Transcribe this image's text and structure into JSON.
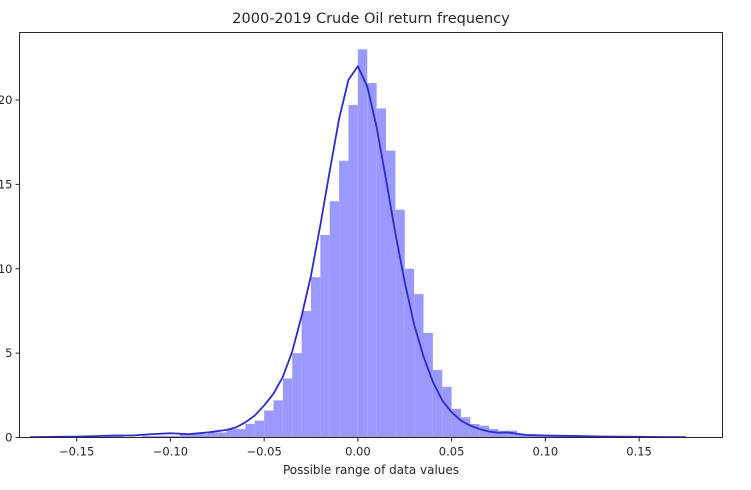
{
  "chart_data": {
    "type": "histogram",
    "title": "2000-2019 Crude Oil return frequency",
    "xlabel": "Possible range of data values",
    "ylabel": "",
    "xlim": [
      -0.1805,
      0.1945
    ],
    "ylim": [
      0,
      24
    ],
    "xticks": [
      -0.15,
      -0.1,
      -0.05,
      0.0,
      0.05,
      0.1,
      0.15
    ],
    "xtick_labels": [
      "−0.15",
      "−0.10",
      "−0.05",
      "0.00",
      "0.05",
      "0.10",
      "0.15"
    ],
    "yticks": [
      0,
      5,
      10,
      15,
      20
    ],
    "ytick_labels": [
      "0",
      "5",
      "10",
      "15",
      "20"
    ],
    "grid": false,
    "bar_color": "#9999ff",
    "kde_color": "#2b2bcf",
    "bin_edges": [
      -0.175,
      -0.17,
      -0.165,
      -0.16,
      -0.155,
      -0.15,
      -0.145,
      -0.14,
      -0.135,
      -0.13,
      -0.125,
      -0.12,
      -0.115,
      -0.11,
      -0.105,
      -0.1,
      -0.095,
      -0.09,
      -0.085,
      -0.08,
      -0.075,
      -0.07,
      -0.065,
      -0.06,
      -0.055,
      -0.05,
      -0.045,
      -0.04,
      -0.035,
      -0.03,
      -0.025,
      -0.02,
      -0.015,
      -0.01,
      -0.005,
      0.0,
      0.005,
      0.01,
      0.015,
      0.02,
      0.025,
      0.03,
      0.035,
      0.04,
      0.045,
      0.05,
      0.055,
      0.06,
      0.065,
      0.07,
      0.075,
      0.08,
      0.085,
      0.09,
      0.095,
      0.1,
      0.105,
      0.11,
      0.115,
      0.12,
      0.125,
      0.13,
      0.135,
      0.14,
      0.145,
      0.15,
      0.155,
      0.16,
      0.165,
      0.17,
      0.175
    ],
    "counts": [
      0,
      0,
      0,
      0,
      0,
      0,
      0,
      0,
      0.1,
      0.1,
      0,
      0,
      0.1,
      0.1,
      0.1,
      0.1,
      0.2,
      0.2,
      0.2,
      0.3,
      0.3,
      0.5,
      0.5,
      0.8,
      1.0,
      1.6,
      2.2,
      3.5,
      5.0,
      7.5,
      9.5,
      12.0,
      14.0,
      16.4,
      19.7,
      23.0,
      21.0,
      19.5,
      17.0,
      13.5,
      10.0,
      8.5,
      6.2,
      4.0,
      3.0,
      1.7,
      1.2,
      0.8,
      0.7,
      0.5,
      0.4,
      0.4,
      0.2,
      0.2,
      0.1,
      0.1,
      0.1,
      0.1,
      0.1,
      0,
      0,
      0,
      0,
      0,
      0,
      0,
      0,
      0,
      0,
      0
    ],
    "kde": {
      "x": [
        -0.175,
        -0.16,
        -0.15,
        -0.14,
        -0.13,
        -0.12,
        -0.11,
        -0.1,
        -0.09,
        -0.08,
        -0.07,
        -0.065,
        -0.06,
        -0.055,
        -0.05,
        -0.045,
        -0.04,
        -0.035,
        -0.03,
        -0.025,
        -0.02,
        -0.015,
        -0.01,
        -0.005,
        0.0,
        0.005,
        0.01,
        0.015,
        0.02,
        0.025,
        0.03,
        0.035,
        0.04,
        0.045,
        0.05,
        0.055,
        0.06,
        0.065,
        0.07,
        0.075,
        0.08,
        0.085,
        0.09,
        0.1,
        0.11,
        0.12,
        0.13,
        0.14,
        0.15,
        0.16,
        0.175
      ],
      "y": [
        0.02,
        0.04,
        0.05,
        0.08,
        0.12,
        0.12,
        0.2,
        0.25,
        0.2,
        0.3,
        0.45,
        0.6,
        0.9,
        1.3,
        1.9,
        2.6,
        3.6,
        5.1,
        7.2,
        9.6,
        12.6,
        15.8,
        18.9,
        21.2,
        22.0,
        20.8,
        18.4,
        15.3,
        12.1,
        9.2,
        6.7,
        4.8,
        3.3,
        2.2,
        1.5,
        1.0,
        0.7,
        0.5,
        0.35,
        0.28,
        0.3,
        0.22,
        0.15,
        0.12,
        0.1,
        0.08,
        0.06,
        0.05,
        0.04,
        0.03,
        0.02
      ]
    }
  }
}
